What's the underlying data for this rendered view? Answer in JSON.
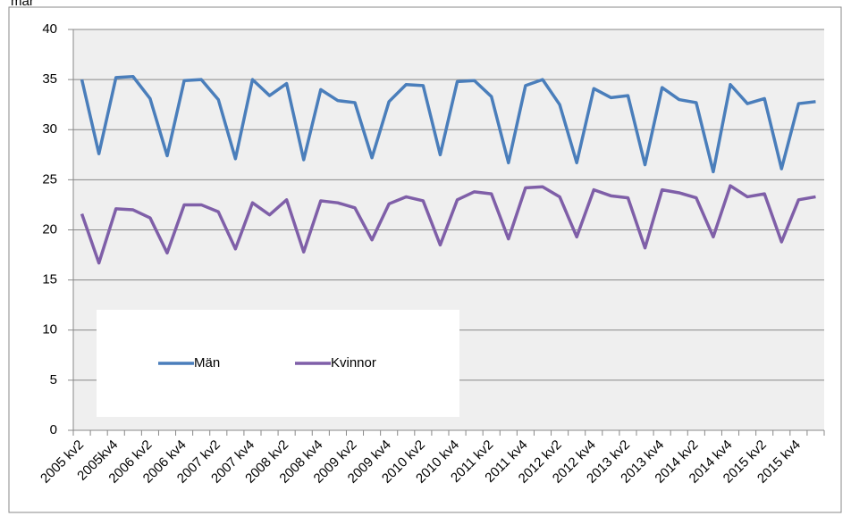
{
  "chart_data": {
    "type": "line",
    "title": "mar",
    "categories": [
      "2005 kv2",
      null,
      "2005kv4",
      null,
      "2006 kv2",
      null,
      "2006 kv4",
      null,
      "2007 kv2",
      null,
      "2007 kv4",
      null,
      "2008 kv2",
      null,
      "2008 kv4",
      null,
      "2009 kv2",
      null,
      "2009 kv4",
      null,
      "2010 kv2",
      null,
      "2010 kv4",
      null,
      "2011 kv2",
      null,
      "2011 kv4",
      null,
      "2012 kv2",
      null,
      "2012 kv4",
      null,
      "2013 kv2",
      null,
      "2013 kv4",
      null,
      "2014 kv2",
      null,
      "2014 kv4",
      null,
      "2015 kv2",
      null,
      "2015 kv4",
      null
    ],
    "series": [
      {
        "name": "Män",
        "color": "#4a7ebb",
        "values": [
          35.0,
          27.6,
          35.2,
          35.3,
          33.1,
          27.4,
          34.9,
          35.0,
          33.0,
          27.1,
          35.0,
          33.4,
          34.6,
          27.0,
          34.0,
          32.9,
          32.7,
          27.2,
          32.8,
          34.5,
          34.4,
          27.5,
          34.8,
          34.9,
          33.3,
          26.7,
          34.4,
          35.0,
          32.5,
          26.7,
          34.1,
          33.2,
          33.4,
          26.5,
          34.2,
          33.0,
          32.7,
          25.8,
          34.5,
          32.6,
          33.1,
          26.1,
          32.6,
          32.8
        ]
      },
      {
        "name": "Kvinnor",
        "color": "#7f5fa8",
        "values": [
          21.6,
          16.7,
          22.1,
          22.0,
          21.2,
          17.7,
          22.5,
          22.5,
          21.8,
          18.1,
          22.7,
          21.5,
          23.0,
          17.8,
          22.9,
          22.7,
          22.2,
          19.0,
          22.6,
          23.3,
          22.9,
          18.5,
          23.0,
          23.8,
          23.6,
          19.1,
          24.2,
          24.3,
          23.3,
          19.3,
          24.0,
          23.4,
          23.2,
          18.2,
          24.0,
          23.7,
          23.2,
          19.3,
          24.4,
          23.3,
          23.6,
          18.8,
          23.0,
          23.3
        ]
      }
    ],
    "ylim": [
      0,
      40
    ],
    "yticks": [
      0,
      5,
      10,
      15,
      20,
      25,
      30,
      35,
      40
    ],
    "grid": true
  }
}
